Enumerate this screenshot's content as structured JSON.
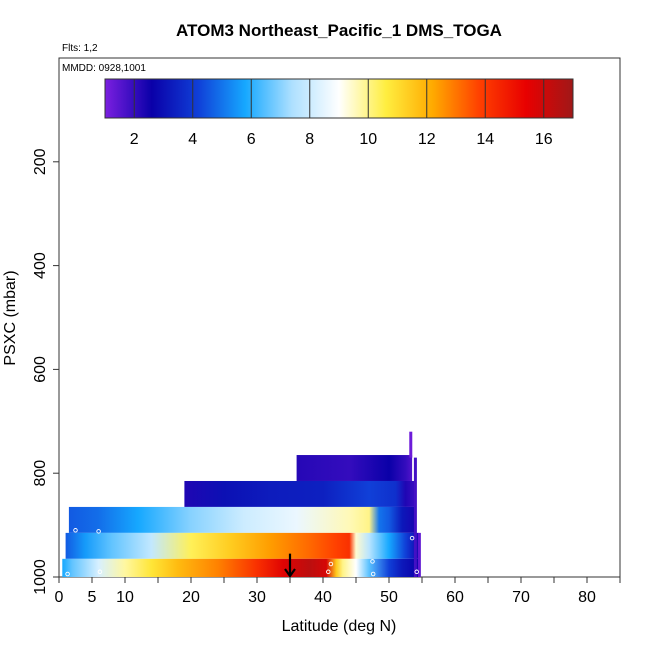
{
  "chart_data": {
    "type": "heatmap",
    "title": "ATOM3 Northeast_Pacific_1 DMS_TOGA",
    "flights_label": "Flts: 1,2",
    "dates_label": "MMDD: 0928,1001",
    "xlabel": "Latitude (deg N)",
    "ylabel": "PSXC (mbar)",
    "xlim": [
      0,
      85
    ],
    "ylim": [
      1000,
      0
    ],
    "x_ticks": [
      0,
      5,
      10,
      20,
      30,
      40,
      50,
      60,
      70,
      80
    ],
    "x_tick_labels": [
      "0",
      "5",
      "10",
      "20",
      "30",
      "40",
      "50",
      "60",
      "70",
      "80"
    ],
    "y_ticks": [
      200,
      400,
      600,
      800,
      1000
    ],
    "y_tick_labels": [
      "200",
      "400",
      "600",
      "800",
      "1000"
    ],
    "colorbar": {
      "range": [
        1,
        17
      ],
      "ticks": [
        2,
        4,
        6,
        8,
        10,
        12,
        14,
        16
      ],
      "tick_labels": [
        "2",
        "4",
        "6",
        "8",
        "10",
        "12",
        "14",
        "16"
      ],
      "colors": [
        "#7b1fe0",
        "#0a00a8",
        "#1040d8",
        "#16a8ff",
        "#aee0ff",
        "#ffffff",
        "#ffee40",
        "#ffaa00",
        "#ff4000",
        "#e80000",
        "#a01818"
      ]
    },
    "bands": [
      {
        "p_top": 765,
        "p_bottom": 815,
        "x_start": 36,
        "x_end": 53.5,
        "stops": [
          [
            36,
            2.2
          ],
          [
            44,
            2.0
          ],
          [
            50,
            2.6
          ],
          [
            52.5,
            2.0
          ],
          [
            53.5,
            1.6
          ]
        ]
      },
      {
        "p_top": 815,
        "p_bottom": 865,
        "x_start": 19,
        "x_end": 54,
        "stops": [
          [
            19,
            2.3
          ],
          [
            25,
            3.0
          ],
          [
            32,
            3.3
          ],
          [
            40,
            3.4
          ],
          [
            47,
            4.2
          ],
          [
            51,
            3.8
          ],
          [
            52.5,
            2.3
          ],
          [
            54,
            1.9
          ]
        ]
      },
      {
        "p_top": 865,
        "p_bottom": 915,
        "x_start": 1.5,
        "x_end": 54,
        "stops": [
          [
            1.5,
            4.6
          ],
          [
            6,
            4.9
          ],
          [
            12,
            5.8
          ],
          [
            20,
            7.0
          ],
          [
            28,
            8.0
          ],
          [
            36,
            8.6
          ],
          [
            44,
            9.6
          ],
          [
            47,
            10.0
          ],
          [
            48.5,
            5.0
          ],
          [
            50,
            4.6
          ],
          [
            52,
            3.2
          ],
          [
            54,
            2.4
          ]
        ]
      },
      {
        "p_top": 915,
        "p_bottom": 965,
        "x_start": 1,
        "x_end": 54.5,
        "stops": [
          [
            1,
            4.6
          ],
          [
            4,
            5.6
          ],
          [
            8,
            6.6
          ],
          [
            14,
            7.8
          ],
          [
            20,
            10.4
          ],
          [
            26,
            11.4
          ],
          [
            32,
            12.4
          ],
          [
            38,
            13.2
          ],
          [
            42,
            13.8
          ],
          [
            44,
            14.2
          ],
          [
            45,
            9.4
          ],
          [
            47,
            7.6
          ],
          [
            50,
            5.8
          ],
          [
            52.5,
            4.2
          ],
          [
            54.5,
            2.5
          ]
        ]
      },
      {
        "p_top": 965,
        "p_bottom": 1005,
        "x_start": 0.5,
        "x_end": 54.5,
        "stops": [
          [
            0.5,
            5.8
          ],
          [
            2,
            6.6
          ],
          [
            6,
            8.2
          ],
          [
            10,
            9.8
          ],
          [
            14,
            10.8
          ],
          [
            18,
            11.8
          ],
          [
            24,
            12.8
          ],
          [
            30,
            14.2
          ],
          [
            34,
            15.6
          ],
          [
            38,
            16.4
          ],
          [
            40.5,
            15.8
          ],
          [
            42,
            11.5
          ],
          [
            43,
            10.0
          ],
          [
            45,
            9.0
          ],
          [
            47,
            6.5
          ],
          [
            50,
            4.2
          ],
          [
            52,
            3.2
          ],
          [
            54.5,
            2.6
          ]
        ]
      }
    ],
    "profile_bars": [
      {
        "x": 53.3,
        "p_top": 720,
        "p_bottom": 770,
        "value": 1.2
      },
      {
        "x": 54.0,
        "p_top": 770,
        "p_bottom": 1005,
        "value": 1.8
      },
      {
        "x": 54.6,
        "p_top": 915,
        "p_bottom": 1005,
        "value": 1.4
      }
    ],
    "arrow": {
      "x": 35,
      "p_from": 955,
      "p_to": 1005
    },
    "markers": [
      {
        "x": 1.3,
        "p": 1000
      },
      {
        "x": 2.5,
        "p": 910
      },
      {
        "x": 6,
        "p": 912
      },
      {
        "x": 6.2,
        "p": 990
      },
      {
        "x": 40.8,
        "p": 990
      },
      {
        "x": 41.2,
        "p": 975
      },
      {
        "x": 47.5,
        "p": 970
      },
      {
        "x": 47.6,
        "p": 1000
      },
      {
        "x": 53.5,
        "p": 925
      },
      {
        "x": 54.2,
        "p": 990
      }
    ]
  }
}
